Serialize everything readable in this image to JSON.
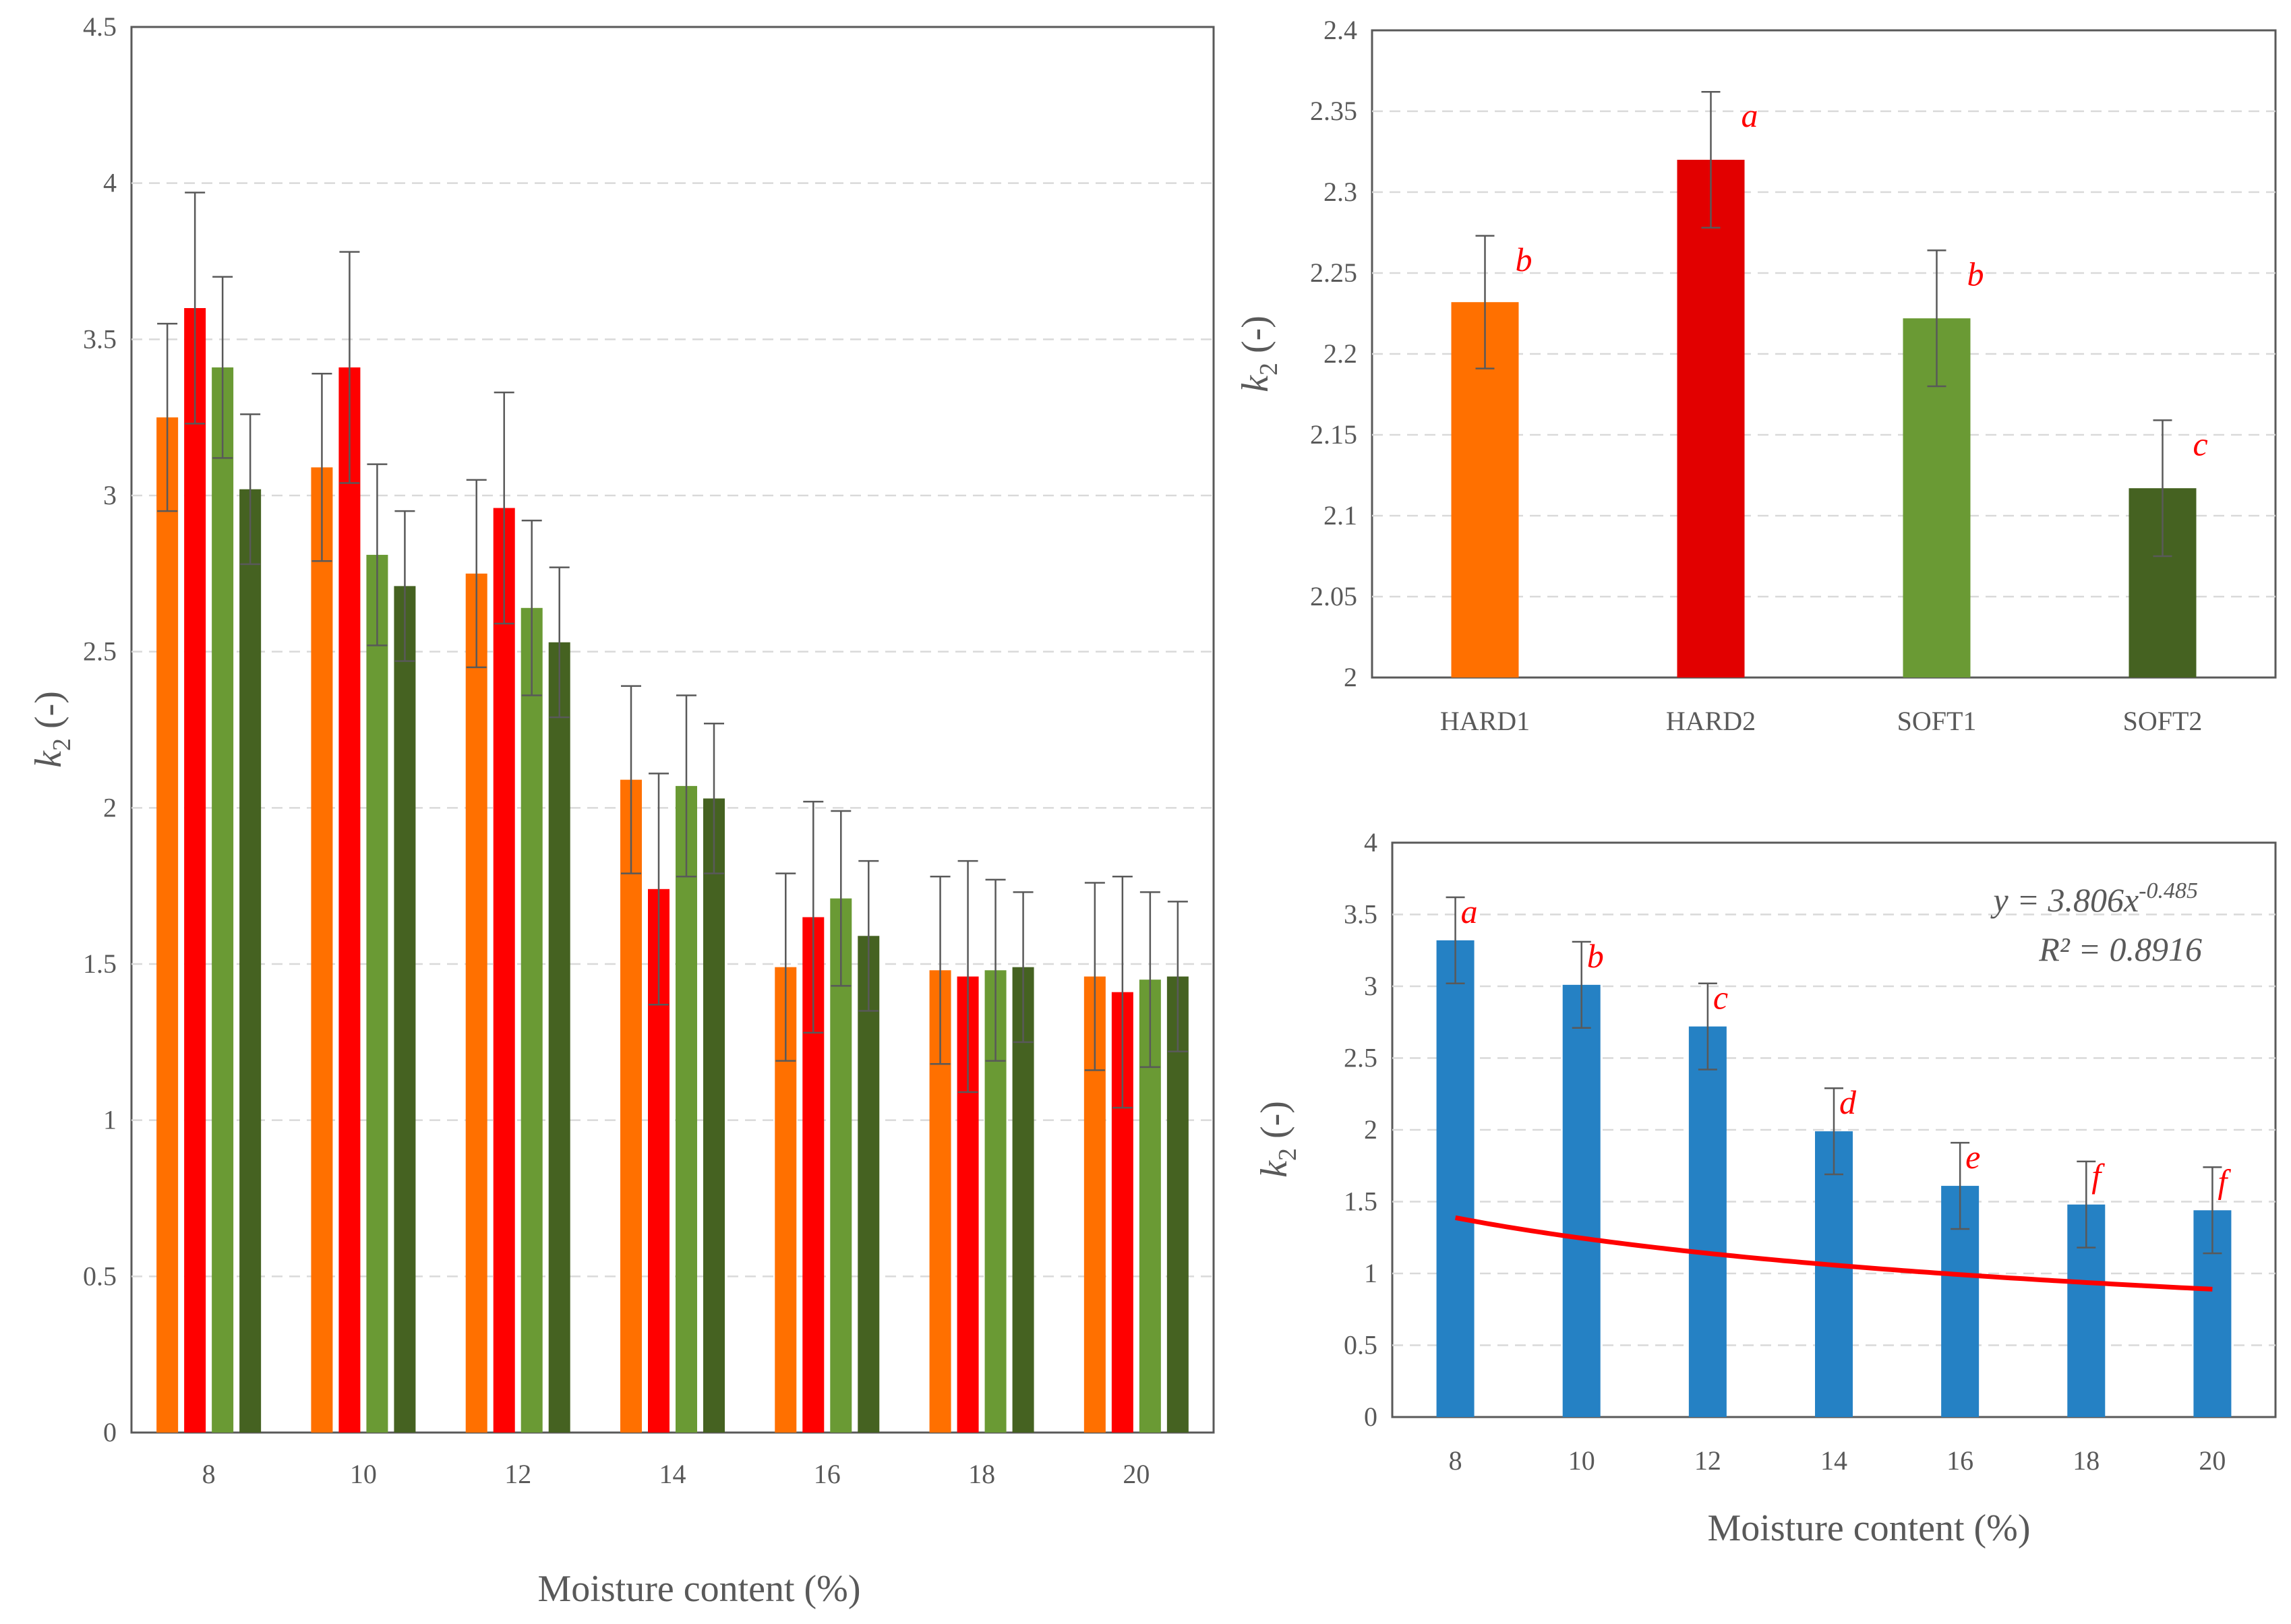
{
  "colors": {
    "HARD1": "#ff7000",
    "HARD2": "#ff0000",
    "SOFT1": "#6a9a34",
    "SOFT2": "#456221",
    "HARD2_panel2": "#e20000",
    "bottom_bar": "#2581c4",
    "fit_line": "#ff0000",
    "annotation": "#ff0000",
    "grid": "#d9d9d9",
    "axis_text": "#595959"
  },
  "chart_data": [
    {
      "id": "left",
      "type": "bar",
      "title": "",
      "xlabel": "Moisture content (%)",
      "ylabel": "k2 (-)",
      "ylabel_main": "k",
      "ylabel_sub": "2",
      "ylabel_rest": " (-)",
      "ylim": [
        0,
        4.5
      ],
      "yticks": [
        0,
        0.5,
        1,
        1.5,
        2,
        2.5,
        3,
        3.5,
        4,
        4.5
      ],
      "ytick_labels": [
        "0",
        "0.5",
        "1",
        "1.5",
        "2",
        "2.5",
        "3",
        "3.5",
        "4",
        "4.5"
      ],
      "grid": true,
      "categories": [
        "8",
        "10",
        "12",
        "14",
        "16",
        "18",
        "20"
      ],
      "series": [
        {
          "name": "HARD1",
          "values": [
            3.25,
            3.09,
            2.75,
            2.09,
            1.49,
            1.48,
            1.46
          ],
          "errors": [
            0.3,
            0.3,
            0.3,
            0.3,
            0.3,
            0.3,
            0.3
          ]
        },
        {
          "name": "HARD2",
          "values": [
            3.6,
            3.41,
            2.96,
            1.74,
            1.65,
            1.46,
            1.41
          ],
          "errors": [
            0.37,
            0.37,
            0.37,
            0.37,
            0.37,
            0.37,
            0.37
          ]
        },
        {
          "name": "SOFT1",
          "values": [
            3.41,
            2.81,
            2.64,
            2.07,
            1.71,
            1.48,
            1.45
          ],
          "errors": [
            0.29,
            0.29,
            0.28,
            0.29,
            0.28,
            0.29,
            0.28
          ]
        },
        {
          "name": "SOFT2",
          "values": [
            3.02,
            2.71,
            2.53,
            2.03,
            1.59,
            1.49,
            1.46
          ],
          "errors": [
            0.24,
            0.24,
            0.24,
            0.24,
            0.24,
            0.24,
            0.24
          ]
        }
      ]
    },
    {
      "id": "top-right",
      "type": "bar",
      "title": "",
      "xlabel": "",
      "ylabel": "k2 (-)",
      "ylabel_main": "k",
      "ylabel_sub": "2",
      "ylabel_rest": " (-)",
      "ylim": [
        2,
        2.4
      ],
      "yticks": [
        2,
        2.05,
        2.1,
        2.15,
        2.2,
        2.25,
        2.3,
        2.35,
        2.4
      ],
      "ytick_labels": [
        "2",
        "2.05",
        "2.1",
        "2.15",
        "2.2",
        "2.25",
        "2.3",
        "2.35",
        "2.4"
      ],
      "grid": true,
      "categories": [
        "HARD1",
        "HARD2",
        "SOFT1",
        "SOFT2"
      ],
      "values": [
        2.232,
        2.32,
        2.222,
        2.117
      ],
      "errors": [
        0.041,
        0.042,
        0.042,
        0.042
      ],
      "letters": [
        "b",
        "a",
        "b",
        "c"
      ]
    },
    {
      "id": "bottom-right",
      "type": "bar",
      "title": "",
      "xlabel": "Moisture content (%)",
      "ylabel": "k2 (-)",
      "ylabel_main": "k",
      "ylabel_sub": "2",
      "ylabel_rest": " (-)",
      "ylim": [
        0,
        4
      ],
      "yticks": [
        0,
        0.5,
        1,
        1.5,
        2,
        2.5,
        3,
        3.5,
        4
      ],
      "ytick_labels": [
        "0",
        "0.5",
        "1",
        "1.5",
        "2",
        "2.5",
        "3",
        "3.5",
        "4"
      ],
      "grid": true,
      "categories": [
        "8",
        "10",
        "12",
        "14",
        "16",
        "18",
        "20"
      ],
      "x": [
        8,
        10,
        12,
        14,
        16,
        18,
        20
      ],
      "values": [
        3.32,
        3.01,
        2.72,
        1.99,
        1.61,
        1.48,
        1.44
      ],
      "errors": [
        0.3,
        0.3,
        0.3,
        0.3,
        0.3,
        0.3,
        0.3
      ],
      "letters": [
        "a",
        "b",
        "c",
        "d",
        "e",
        "f",
        "f"
      ],
      "trendline": {
        "type": "power",
        "a": 3.806,
        "b": -0.485,
        "x_range": [
          8,
          20
        ],
        "equation_prefix": "y = 3.806x",
        "equation_exponent": "-0.485",
        "r2_label": "R² = 0.8916"
      }
    }
  ]
}
